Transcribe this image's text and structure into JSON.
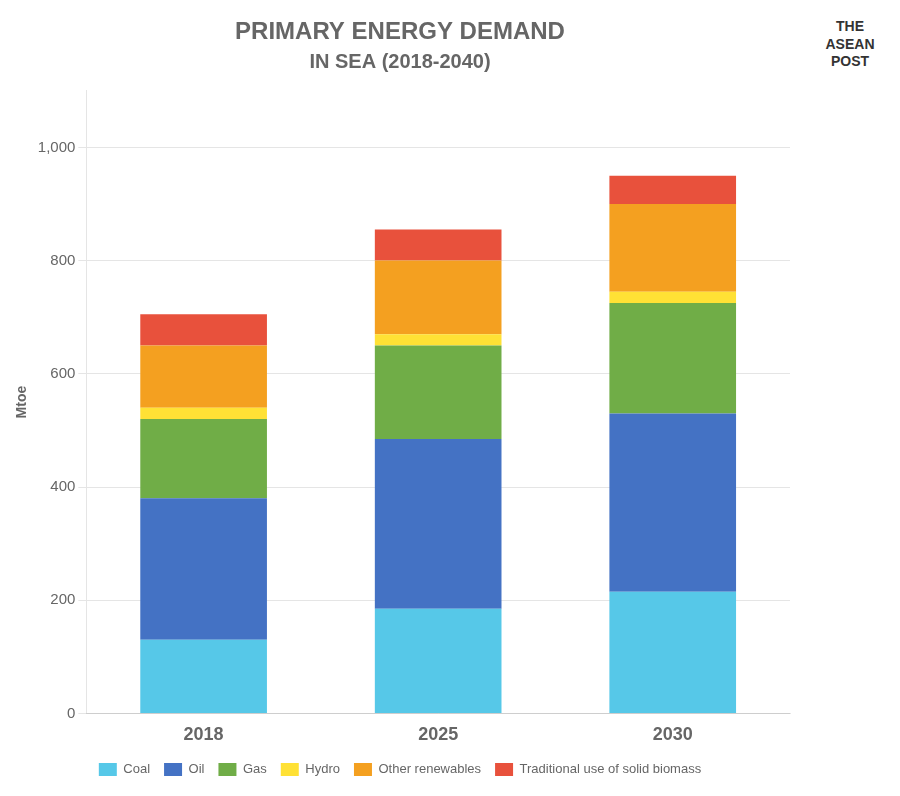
{
  "chart_data": {
    "type": "bar",
    "stacked": true,
    "title": "PRIMARY ENERGY DEMAND",
    "subtitle": "IN SEA (2018-2040)",
    "annotations": [
      "THE",
      "ASEAN",
      "POST"
    ],
    "y_label": "Mtoe",
    "categories": [
      "2018",
      "2025",
      "2030"
    ],
    "series": [
      {
        "name": "Coal",
        "color": "#56C8E8",
        "values": [
          130,
          185,
          215
        ]
      },
      {
        "name": "Oil",
        "color": "#4472C4",
        "values": [
          250,
          300,
          315
        ]
      },
      {
        "name": "Gas",
        "color": "#70AD47",
        "values": [
          140,
          165,
          195
        ]
      },
      {
        "name": "Hydro",
        "color": "#FFE135",
        "values": [
          20,
          20,
          20
        ]
      },
      {
        "name": "Other renewables",
        "color": "#F4A020",
        "values": [
          110,
          130,
          155
        ]
      },
      {
        "name": "Traditional use of solid biomass",
        "color": "#E8513C",
        "values": [
          55,
          55,
          50
        ]
      }
    ],
    "ylim": [
      0,
      1100
    ],
    "yticks": [
      0,
      200,
      400,
      600,
      800,
      {
        "value": 1000,
        "label": "1,000"
      }
    ],
    "grid": true,
    "legend": "bottom"
  }
}
